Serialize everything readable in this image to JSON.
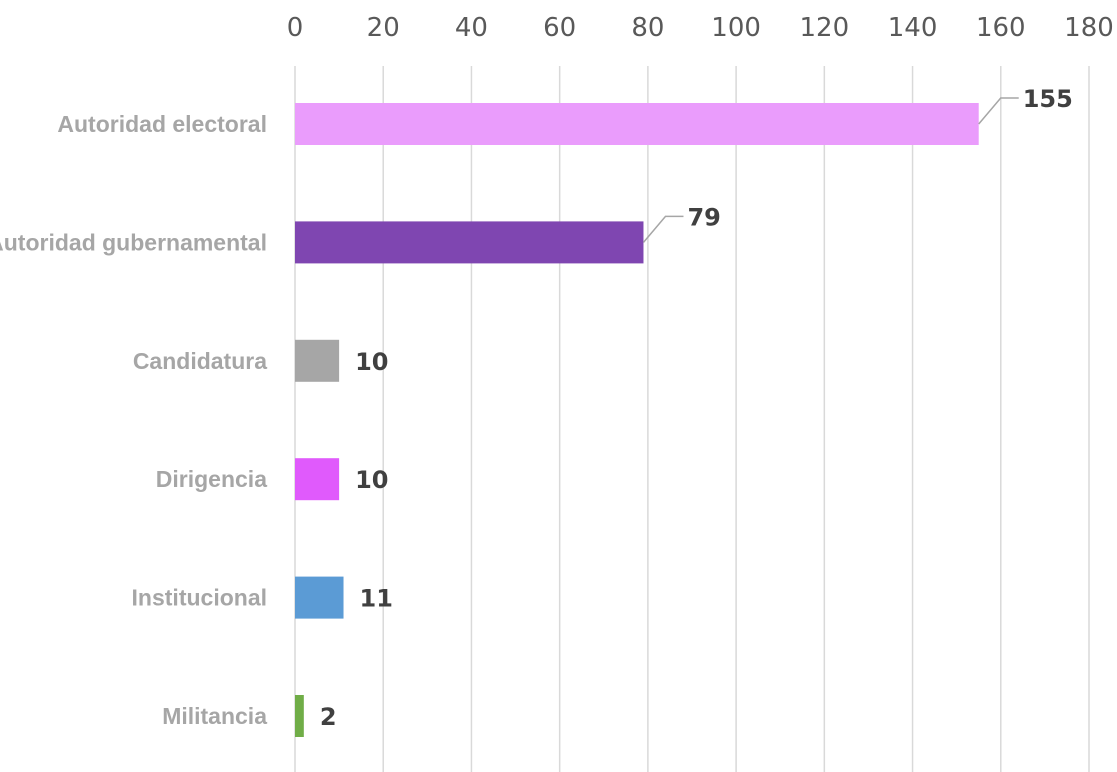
{
  "chart_data": {
    "type": "bar",
    "orientation": "horizontal",
    "categories": [
      "Autoridad electoral",
      "Autoridad gubernamental",
      "Candidatura",
      "Dirigencia",
      "Institucional",
      "Militancia"
    ],
    "values": [
      155,
      79,
      10,
      10,
      11,
      2
    ],
    "colors": [
      "#ea9cfc",
      "#7f46b1",
      "#a6a6a6",
      "#e05afc",
      "#5b9bd5",
      "#70ad47"
    ],
    "data_labels": [
      "155",
      "79",
      "10",
      "10",
      "11",
      "2"
    ],
    "xlim": [
      0,
      180
    ],
    "x_ticks": [
      0,
      20,
      40,
      60,
      80,
      100,
      120,
      140,
      160,
      180
    ],
    "x_tick_labels": [
      "0",
      "20",
      "40",
      "60",
      "80",
      "100",
      "120",
      "140",
      "160",
      "180"
    ],
    "axis_position": "top",
    "grid": true,
    "legend": false,
    "title": "",
    "xlabel": "",
    "ylabel": ""
  }
}
